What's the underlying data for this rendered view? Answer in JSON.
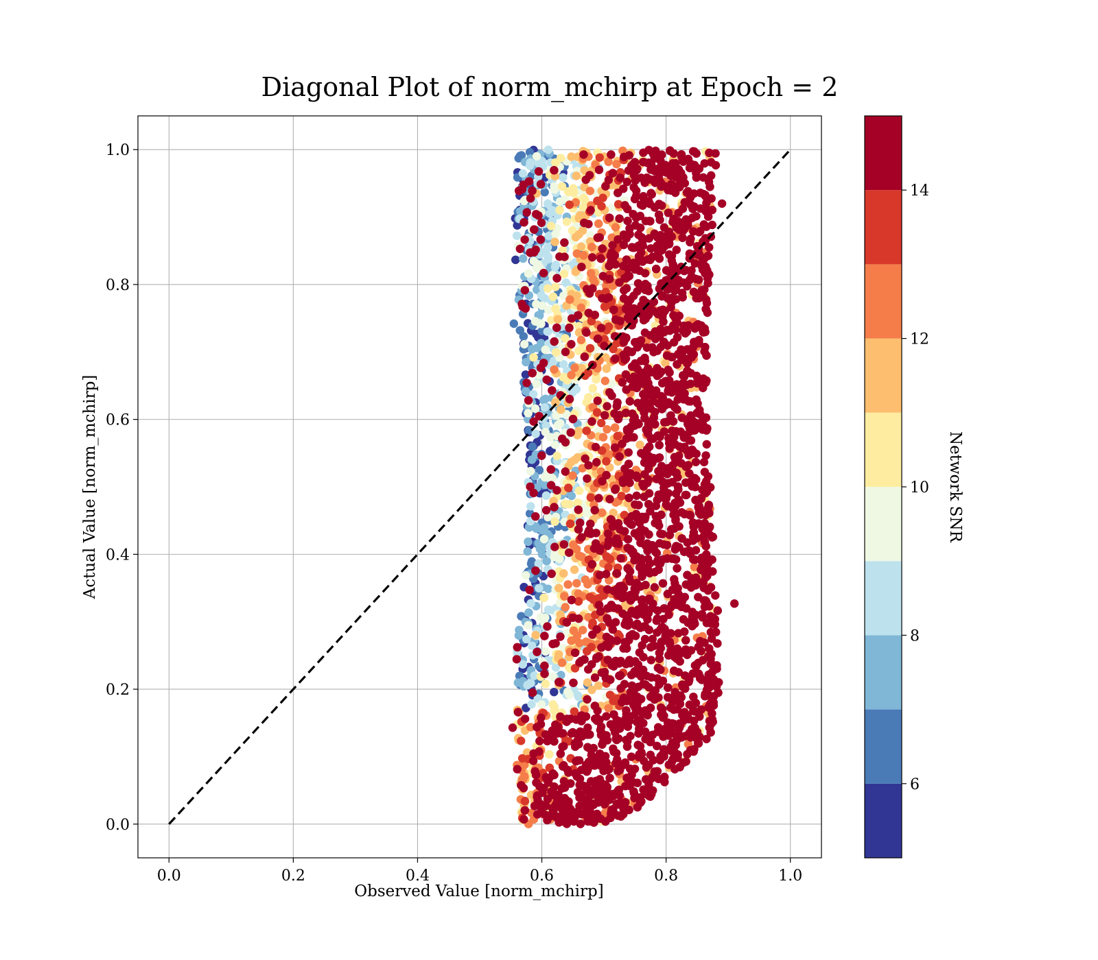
{
  "chart_data": {
    "type": "scatter",
    "title": "Diagonal Plot of norm_mchirp at Epoch = 2",
    "xlabel": "Observed Value [norm_mchirp]",
    "ylabel": "Actual Value [norm_mchirp]",
    "xlim": [
      -0.05,
      1.05
    ],
    "ylim": [
      -0.05,
      1.05
    ],
    "xticks": [
      0.0,
      0.2,
      0.4,
      0.6,
      0.8,
      1.0
    ],
    "yticks": [
      0.0,
      0.2,
      0.4,
      0.6,
      0.8,
      1.0
    ],
    "xtick_labels": [
      "0.0",
      "0.2",
      "0.4",
      "0.6",
      "0.8",
      "1.0"
    ],
    "ytick_labels": [
      "0.0",
      "0.2",
      "0.4",
      "0.6",
      "0.8",
      "1.0"
    ],
    "grid": true,
    "reference_line": {
      "style": "dashed",
      "color": "#000000",
      "from": [
        0.0,
        0.0
      ],
      "to": [
        1.0,
        1.0
      ]
    },
    "points_summary": {
      "x_range": [
        0.55,
        0.91
      ],
      "y_range": [
        0.0,
        1.0
      ],
      "high_snr_band_x_center": 0.83,
      "low_snr_band_x_center": 0.62
    },
    "colorbar": {
      "label": "Network SNR",
      "range": [
        5,
        15
      ],
      "ticks": [
        6,
        8,
        10,
        12,
        14
      ],
      "tick_labels": [
        "6",
        "8",
        "10",
        "12",
        "14"
      ],
      "bins": [
        {
          "from": 5,
          "to": 6,
          "color": "#313695"
        },
        {
          "from": 6,
          "to": 7,
          "color": "#4a7bb7"
        },
        {
          "from": 7,
          "to": 8,
          "color": "#80b6d6"
        },
        {
          "from": 8,
          "to": 9,
          "color": "#bde2ee"
        },
        {
          "from": 9,
          "to": 10,
          "color": "#eff8e2"
        },
        {
          "from": 10,
          "to": 11,
          "color": "#feeda1"
        },
        {
          "from": 11,
          "to": 12,
          "color": "#fdbf6f"
        },
        {
          "from": 12,
          "to": 13,
          "color": "#f57d4a"
        },
        {
          "from": 13,
          "to": 14,
          "color": "#d8382a"
        },
        {
          "from": 14,
          "to": 15,
          "color": "#a50026"
        }
      ]
    }
  }
}
